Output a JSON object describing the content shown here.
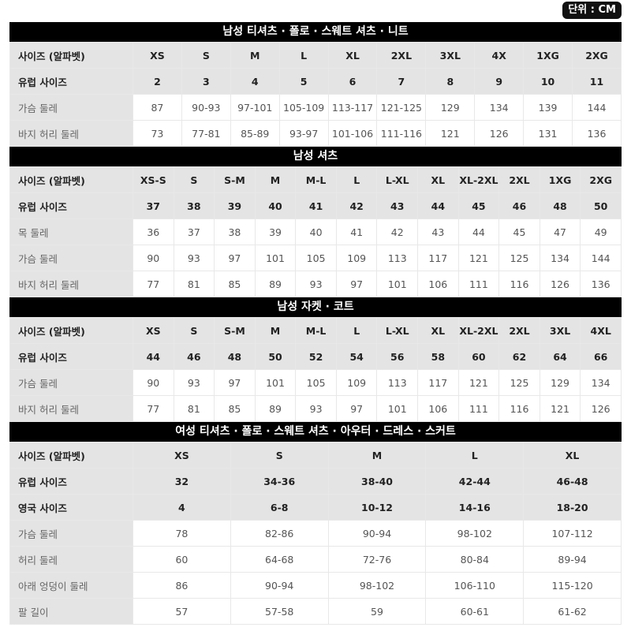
{
  "unit_badge": "단위 : CM",
  "sections": [
    {
      "title": "남성 티셔츠 · 폴로 · 스웨트 셔츠 · 니트",
      "header_rows": 2,
      "rows": [
        {
          "label": "사이즈 (알파벳)",
          "values": [
            "XS",
            "S",
            "M",
            "L",
            "XL",
            "2XL",
            "3XL",
            "4X",
            "1XG",
            "2XG"
          ]
        },
        {
          "label": "유럽 사이즈",
          "values": [
            "2",
            "3",
            "4",
            "5",
            "6",
            "7",
            "8",
            "9",
            "10",
            "11"
          ]
        },
        {
          "label": "가슴 둘레",
          "values": [
            "87",
            "90-93",
            "97-101",
            "105-109",
            "113-117",
            "121-125",
            "129",
            "134",
            "139",
            "144"
          ]
        },
        {
          "label": "바지 허리 둘레",
          "values": [
            "73",
            "77-81",
            "85-89",
            "93-97",
            "101-106",
            "111-116",
            "121",
            "126",
            "131",
            "136"
          ]
        }
      ]
    },
    {
      "title": "남성 셔츠",
      "header_rows": 2,
      "rows": [
        {
          "label": "사이즈 (알파벳)",
          "values": [
            "XS-S",
            "S",
            "S-M",
            "M",
            "M-L",
            "L",
            "L-XL",
            "XL",
            "XL-2XL",
            "2XL",
            "1XG",
            "2XG"
          ]
        },
        {
          "label": "유럽 사이즈",
          "values": [
            "37",
            "38",
            "39",
            "40",
            "41",
            "42",
            "43",
            "44",
            "45",
            "46",
            "48",
            "50"
          ]
        },
        {
          "label": "목 둘레",
          "values": [
            "36",
            "37",
            "38",
            "39",
            "40",
            "41",
            "42",
            "43",
            "44",
            "45",
            "47",
            "49"
          ]
        },
        {
          "label": "가슴 둘레",
          "values": [
            "90",
            "93",
            "97",
            "101",
            "105",
            "109",
            "113",
            "117",
            "121",
            "125",
            "134",
            "144"
          ]
        },
        {
          "label": "바지 허리 둘레",
          "values": [
            "77",
            "81",
            "85",
            "89",
            "93",
            "97",
            "101",
            "106",
            "111",
            "116",
            "126",
            "136"
          ]
        }
      ]
    },
    {
      "title": "남성 자켓 · 코트",
      "header_rows": 2,
      "rows": [
        {
          "label": "사이즈 (알파벳)",
          "values": [
            "XS",
            "S",
            "S-M",
            "M",
            "M-L",
            "L",
            "L-XL",
            "XL",
            "XL-2XL",
            "2XL",
            "3XL",
            "4XL"
          ]
        },
        {
          "label": "유럽 사이즈",
          "values": [
            "44",
            "46",
            "48",
            "50",
            "52",
            "54",
            "56",
            "58",
            "60",
            "62",
            "64",
            "66"
          ]
        },
        {
          "label": "가슴 둘레",
          "values": [
            "90",
            "93",
            "97",
            "101",
            "105",
            "109",
            "113",
            "117",
            "121",
            "125",
            "129",
            "134"
          ]
        },
        {
          "label": "바지 허리 둘레",
          "values": [
            "77",
            "81",
            "85",
            "89",
            "93",
            "97",
            "101",
            "106",
            "111",
            "116",
            "121",
            "126"
          ]
        }
      ]
    },
    {
      "title": "여성 티셔츠 · 폴로 · 스웨트 셔츠 · 아우터 · 드레스 · 스커트",
      "header_rows": 3,
      "rows": [
        {
          "label": "사이즈 (알파벳)",
          "values": [
            "XS",
            "S",
            "M",
            "L",
            "XL"
          ]
        },
        {
          "label": "유럽 사이즈",
          "values": [
            "32",
            "34-36",
            "38-40",
            "42-44",
            "46-48"
          ]
        },
        {
          "label": "영국 사이즈",
          "values": [
            "4",
            "6-8",
            "10-12",
            "14-16",
            "18-20"
          ]
        },
        {
          "label": "가슴 둘레",
          "values": [
            "78",
            "82-86",
            "90-94",
            "98-102",
            "107-112"
          ]
        },
        {
          "label": "허리 둘레",
          "values": [
            "60",
            "64-68",
            "72-76",
            "80-84",
            "89-94"
          ]
        },
        {
          "label": "아래 엉덩이 둘레",
          "values": [
            "86",
            "90-94",
            "98-102",
            "106-110",
            "115-120"
          ]
        },
        {
          "label": "팔 길이",
          "values": [
            "57",
            "57-58",
            "59",
            "60-61",
            "61-62"
          ]
        }
      ]
    }
  ]
}
